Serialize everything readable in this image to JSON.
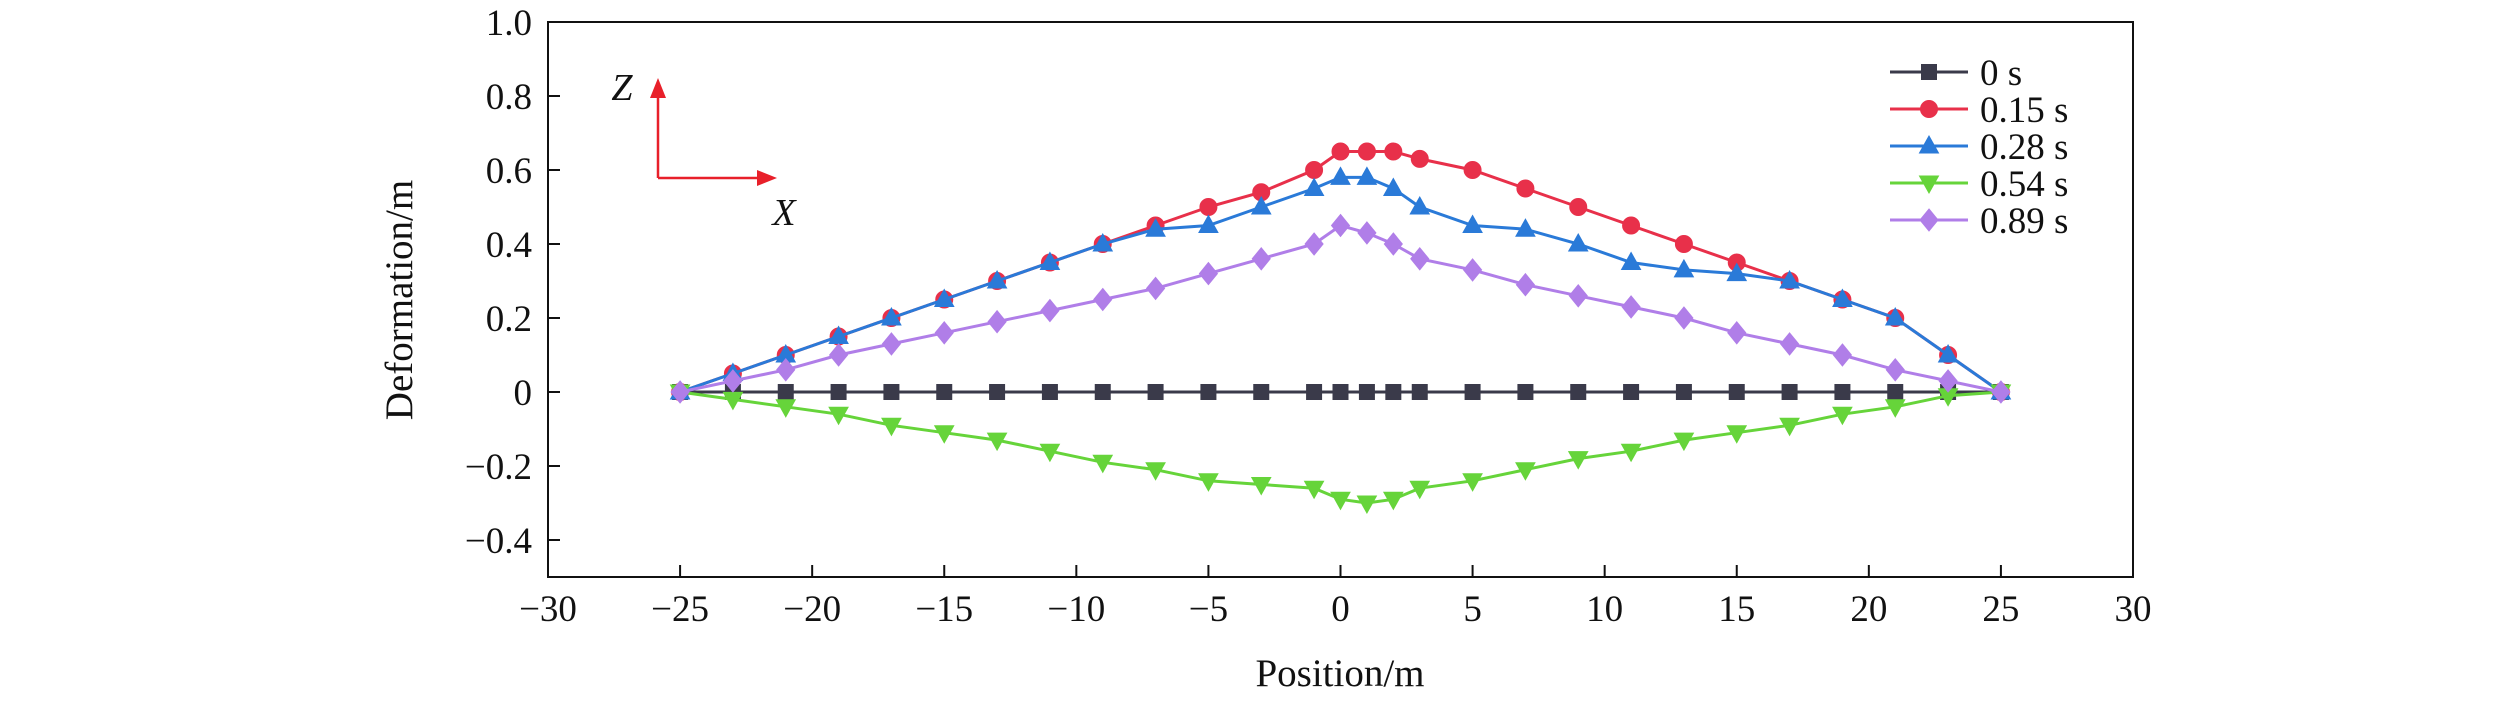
{
  "chart_data": {
    "type": "line",
    "title": "",
    "xlabel": "Position/m",
    "ylabel": "Deformation/m",
    "xlim": [
      -30,
      30
    ],
    "ylim": [
      -0.5,
      1.0
    ],
    "xticks": [
      -30,
      -25,
      -20,
      -15,
      -10,
      -5,
      0,
      5,
      10,
      15,
      20,
      25,
      30
    ],
    "yticks": [
      -0.4,
      -0.2,
      0,
      0.2,
      0.4,
      0.6,
      0.8,
      1.0
    ],
    "xtick_labels": [
      "−30",
      "−25",
      "−20",
      "−15",
      "−10",
      "−5",
      "0",
      "5",
      "10",
      "15",
      "20",
      "25",
      "30"
    ],
    "ytick_labels": [
      "−0.4",
      "−0.2",
      "0",
      "0.2",
      "0.4",
      "0.6",
      "0.8",
      "1.0"
    ],
    "grid": false,
    "legend_position": "top-right",
    "series": [
      {
        "name": "0 s",
        "color": "#3a3a4a",
        "marker": "square",
        "x": [
          -25,
          -23,
          -21,
          -19,
          -17,
          -15,
          -13,
          -11,
          -9,
          -7,
          -5,
          -3,
          -1,
          0,
          1,
          2,
          3,
          5,
          7,
          9,
          11,
          13,
          15,
          17,
          19,
          21,
          23,
          25
        ],
        "y": [
          0,
          0,
          0,
          0,
          0,
          0,
          0,
          0,
          0,
          0,
          0,
          0,
          0,
          0,
          0,
          0,
          0,
          0,
          0,
          0,
          0,
          0,
          0,
          0,
          0,
          0,
          0,
          0
        ]
      },
      {
        "name": "0.15 s",
        "color": "#e8304a",
        "marker": "circle",
        "x": [
          -25,
          -23,
          -21,
          -19,
          -17,
          -15,
          -13,
          -11,
          -9,
          -7,
          -5,
          -3,
          -1,
          0,
          1,
          2,
          3,
          5,
          7,
          9,
          11,
          13,
          15,
          17,
          19,
          21,
          23,
          25
        ],
        "y": [
          0,
          0.05,
          0.1,
          0.15,
          0.2,
          0.25,
          0.3,
          0.35,
          0.4,
          0.45,
          0.5,
          0.54,
          0.6,
          0.65,
          0.65,
          0.65,
          0.63,
          0.6,
          0.55,
          0.5,
          0.45,
          0.4,
          0.35,
          0.3,
          0.25,
          0.2,
          0.1,
          0
        ]
      },
      {
        "name": "0.28 s",
        "color": "#2a7ad8",
        "marker": "triangle-up",
        "x": [
          -25,
          -23,
          -21,
          -19,
          -17,
          -15,
          -13,
          -11,
          -9,
          -7,
          -5,
          -3,
          -1,
          0,
          1,
          2,
          3,
          5,
          7,
          9,
          11,
          13,
          15,
          17,
          19,
          21,
          23,
          25
        ],
        "y": [
          0,
          0.05,
          0.1,
          0.15,
          0.2,
          0.25,
          0.3,
          0.35,
          0.4,
          0.44,
          0.45,
          0.5,
          0.55,
          0.58,
          0.58,
          0.55,
          0.5,
          0.45,
          0.44,
          0.4,
          0.35,
          0.33,
          0.32,
          0.3,
          0.25,
          0.2,
          0.1,
          0
        ]
      },
      {
        "name": "0.54 s",
        "color": "#66d43a",
        "marker": "triangle-down",
        "x": [
          -25,
          -23,
          -21,
          -19,
          -17,
          -15,
          -13,
          -11,
          -9,
          -7,
          -5,
          -3,
          -1,
          0,
          1,
          2,
          3,
          5,
          7,
          9,
          11,
          13,
          15,
          17,
          19,
          21,
          23,
          25
        ],
        "y": [
          0,
          -0.02,
          -0.04,
          -0.06,
          -0.09,
          -0.11,
          -0.13,
          -0.16,
          -0.19,
          -0.21,
          -0.24,
          -0.25,
          -0.26,
          -0.29,
          -0.3,
          -0.29,
          -0.26,
          -0.24,
          -0.21,
          -0.18,
          -0.16,
          -0.13,
          -0.11,
          -0.09,
          -0.06,
          -0.04,
          -0.01,
          0
        ]
      },
      {
        "name": "0.89 s",
        "color": "#b07ee8",
        "marker": "diamond",
        "x": [
          -25,
          -23,
          -21,
          -19,
          -17,
          -15,
          -13,
          -11,
          -9,
          -7,
          -5,
          -3,
          -1,
          0,
          1,
          2,
          3,
          5,
          7,
          9,
          11,
          13,
          15,
          17,
          19,
          21,
          23,
          25
        ],
        "y": [
          0,
          0.03,
          0.06,
          0.1,
          0.13,
          0.16,
          0.19,
          0.22,
          0.25,
          0.28,
          0.32,
          0.36,
          0.4,
          0.45,
          0.43,
          0.4,
          0.36,
          0.33,
          0.29,
          0.26,
          0.23,
          0.2,
          0.16,
          0.13,
          0.1,
          0.06,
          0.03,
          0
        ]
      }
    ],
    "annotations": {
      "z_axis_label": "Z",
      "x_axis_label": "X",
      "arrow_color": "#e8202a"
    }
  }
}
